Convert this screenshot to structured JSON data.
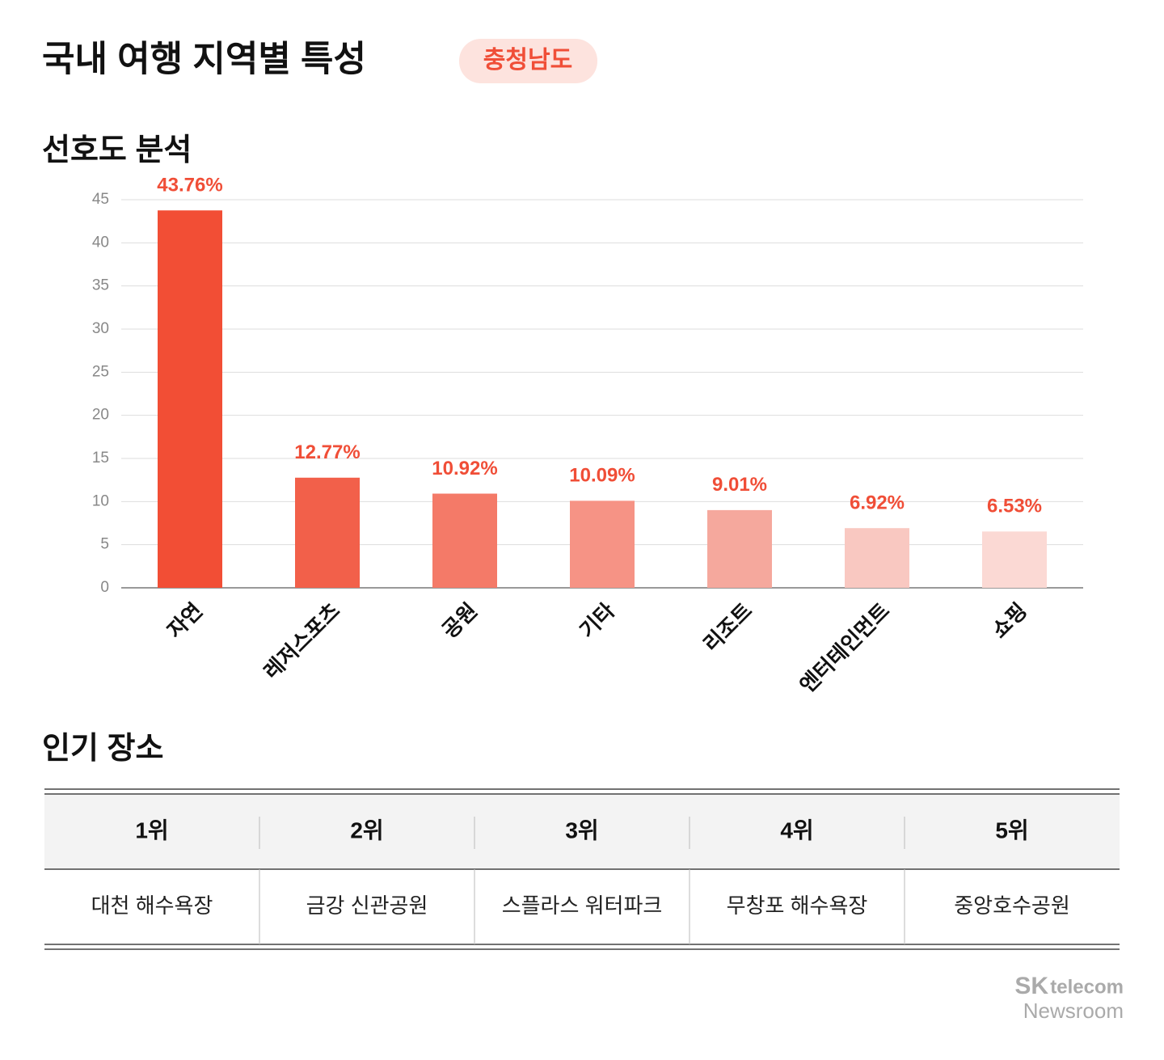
{
  "header": {
    "title": "국내 여행 지역별 특성",
    "badge": "충청남도"
  },
  "chart_data": {
    "type": "bar",
    "title": "선호도 분석",
    "categories": [
      "자연",
      "레저스포츠",
      "공원",
      "기타",
      "리조트",
      "엔터테인먼트",
      "쇼핑"
    ],
    "values": [
      43.76,
      12.77,
      10.92,
      10.09,
      9.01,
      6.92,
      6.53
    ],
    "value_labels": [
      "43.76%",
      "12.77%",
      "10.92%",
      "10.09%",
      "9.01%",
      "6.92%",
      "6.53%"
    ],
    "colors": [
      "#f24e35",
      "#f2604a",
      "#f47a68",
      "#f69385",
      "#f5a89d",
      "#f9c8c1",
      "#fbd9d4"
    ],
    "label_color": "#f04e37",
    "ylim": [
      0,
      45
    ],
    "yticks": [
      0,
      5,
      10,
      15,
      20,
      25,
      30,
      35,
      40,
      45
    ],
    "grid": true
  },
  "popular": {
    "title": "인기 장소",
    "headers": [
      "1위",
      "2위",
      "3위",
      "4위",
      "5위"
    ],
    "rows": [
      [
        "대천 해수욕장",
        "금강 신관공원",
        "스플라스 워터파크",
        "무창포 해수욕장",
        "중앙호수공원"
      ]
    ]
  },
  "footer": {
    "logo_mark": "SK",
    "logo_text": "telecom",
    "logo_sub": "Newsroom"
  }
}
